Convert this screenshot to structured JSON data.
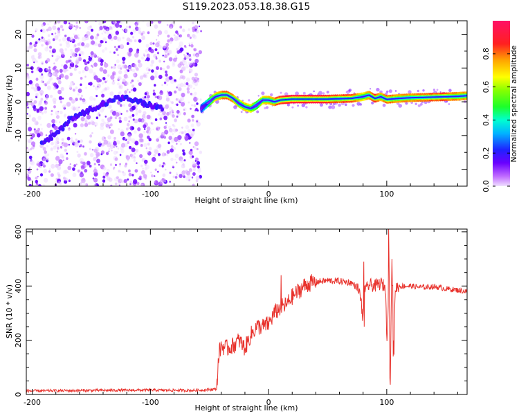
{
  "title": "S119.2023.053.18.38.G15",
  "chart_data": [
    {
      "type": "heatmap",
      "title": "S119.2023.053.18.38.G15",
      "xlabel": "Height of straight line (km)",
      "ylabel": "Frequency (Hz)",
      "xlim": [
        -205,
        168
      ],
      "ylim": [
        -25,
        24
      ],
      "xticks": [
        -200,
        -100,
        0,
        100
      ],
      "yticks": [
        -20,
        -10,
        0,
        10,
        20
      ],
      "grid": false,
      "noise_region": {
        "x": [
          -205,
          -57
        ],
        "description_values": "scattered low-amplitude energy"
      },
      "ridge_early": {
        "x": [
          -192,
          -185,
          -175,
          -168,
          -160,
          -150,
          -140,
          -130,
          -120,
          -110,
          -100,
          -90
        ],
        "y": [
          -12.5,
          -11,
          -8,
          -5,
          -4,
          -2,
          -1,
          1,
          1,
          0,
          -1,
          -2
        ]
      },
      "ridge": {
        "x": [
          -57,
          -50,
          -45,
          -40,
          -35,
          -30,
          -25,
          -20,
          -15,
          -10,
          -5,
          0,
          5,
          10,
          20,
          30,
          40,
          50,
          60,
          70,
          80,
          85,
          90,
          95,
          100,
          110,
          120,
          130,
          140,
          150,
          160,
          168
        ],
        "y": [
          -2,
          0,
          1.5,
          2,
          2,
          1,
          -0.5,
          -1.5,
          -2,
          -1,
          0.5,
          0.5,
          0,
          0.5,
          0.8,
          0.8,
          0.8,
          0.8,
          0.9,
          1,
          1.5,
          2,
          1,
          1.5,
          0.7,
          1,
          1.2,
          1.3,
          1.4,
          1.5,
          1.6,
          1.8
        ],
        "amplitude": [
          0.25,
          0.5,
          0.7,
          0.8,
          0.85,
          0.8,
          0.6,
          0.75,
          0.7,
          0.5,
          0.7,
          0.75,
          0.8,
          0.9,
          0.95,
          0.95,
          0.95,
          0.9,
          0.85,
          0.9,
          0.7,
          0.8,
          0.9,
          0.75,
          0.85,
          0.8,
          0.8,
          0.85,
          0.85,
          0.85,
          0.8,
          0.8
        ]
      },
      "colorbar": {
        "label": "Normalized spectral amplitude",
        "range": [
          0,
          1
        ],
        "ticks": [
          "0.0",
          "0.2",
          "0.4",
          "0.6",
          "0.8"
        ]
      }
    },
    {
      "type": "line",
      "xlabel": "Height of straight line (km)",
      "ylabel": "SNR (10 * v/v)",
      "xlim": [
        -205,
        168
      ],
      "ylim": [
        0,
        610
      ],
      "xticks": [
        -200,
        -100,
        0,
        100
      ],
      "yticks": [
        0,
        200,
        400,
        600
      ],
      "grid": false,
      "color": "#e8322c",
      "series": [
        {
          "x": [
            -205,
            -150,
            -100,
            -60,
            -44,
            -42,
            -40,
            -35,
            -30,
            -25,
            -20,
            -15,
            -10,
            -5,
            0,
            5,
            10,
            15,
            20,
            25,
            30,
            35,
            40,
            50,
            60,
            70,
            75,
            78,
            80,
            81,
            82,
            85,
            90,
            95,
            99,
            100,
            101,
            102,
            103,
            104,
            105,
            106,
            107,
            110,
            120,
            130,
            140,
            150,
            160,
            168
          ],
          "y": [
            13,
            15,
            16,
            15,
            20,
            150,
            180,
            170,
            180,
            200,
            170,
            220,
            250,
            250,
            260,
            300,
            320,
            330,
            360,
            380,
            400,
            410,
            415,
            420,
            418,
            412,
            395,
            360,
            260,
            420,
            380,
            405,
            400,
            410,
            395,
            200,
            300,
            500,
            60,
            380,
            420,
            130,
            390,
            400,
            400,
            395,
            398,
            390,
            385,
            380
          ]
        }
      ],
      "spikes": [
        {
          "x": 101.6,
          "y": 610
        },
        {
          "x": 102.8,
          "y": 60
        },
        {
          "x": 104.5,
          "y": 500
        },
        {
          "x": 105.5,
          "y": 140
        },
        {
          "x": 80.5,
          "y": 490
        },
        {
          "x": 81,
          "y": 250
        },
        {
          "x": 10.5,
          "y": 440
        }
      ]
    }
  ]
}
